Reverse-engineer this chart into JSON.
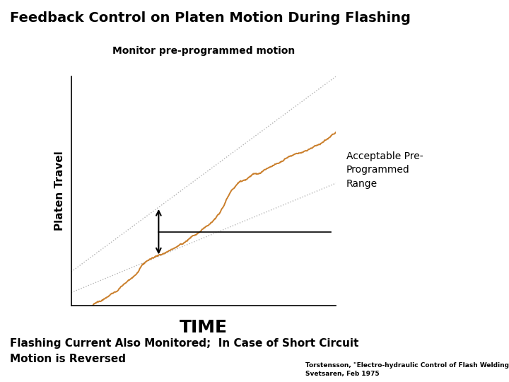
{
  "title": "Feedback Control on Platen Motion During Flashing",
  "subtitle": "Monitor pre-programmed motion",
  "xlabel": "TIME",
  "ylabel": "Platen Travel",
  "annotation_label": "Acceptable Pre-\nProgrammed\nRange",
  "bottom_text1": "Flashing Current Also Monitored;  In Case of Short Circuit",
  "bottom_text2": "Motion is Reversed",
  "citation": "Torstensson, \"Electro-hydraulic Control of Flash Welding..\"",
  "citation2": "Svetsaren, Feb 1975",
  "bg_color": "#ffffff",
  "line_color_orange": "#c87820",
  "arrow_color": "#000000"
}
